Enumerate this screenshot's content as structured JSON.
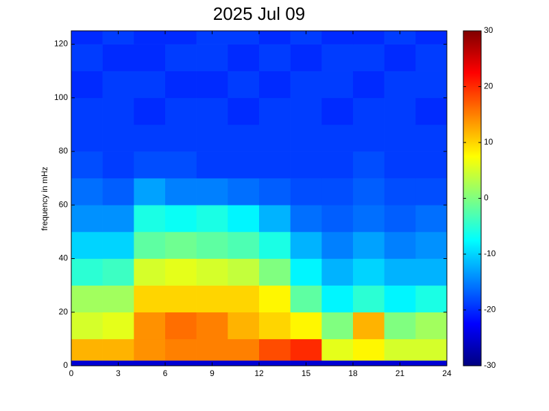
{
  "chart_data": {
    "type": "heatmap",
    "title": "2025 Jul 09",
    "y_label": "frequency in mHz",
    "colormap": "jet",
    "x_bins": [
      0,
      2,
      4,
      6,
      8,
      10,
      12,
      14,
      16,
      18,
      20,
      22,
      24
    ],
    "y_bins": [
      0,
      2,
      10,
      20,
      30,
      40,
      50,
      60,
      70,
      80,
      90,
      100,
      110,
      120,
      125
    ],
    "z": [
      [
        -25,
        -25,
        -25,
        -25,
        -25,
        -25,
        -25,
        -25,
        -25,
        -25,
        -25,
        -25
      ],
      [
        12,
        12,
        14,
        15,
        15,
        15,
        18,
        20,
        6,
        8,
        5,
        5
      ],
      [
        5,
        6,
        14,
        16,
        15,
        12,
        10,
        8,
        0,
        12,
        0,
        2
      ],
      [
        2,
        2,
        10,
        10,
        10,
        10,
        8,
        -2,
        -8,
        -5,
        -8,
        -6
      ],
      [
        -5,
        -4,
        5,
        6,
        5,
        4,
        0,
        -8,
        -12,
        -10,
        -12,
        -12
      ],
      [
        -10,
        -10,
        -2,
        -1,
        -2,
        -3,
        -6,
        -12,
        -15,
        -13,
        -15,
        -14
      ],
      [
        -14,
        -14,
        -6,
        -7,
        -6,
        -8,
        -12,
        -16,
        -17,
        -16,
        -17,
        -16
      ],
      [
        -16,
        -17,
        -13,
        -15,
        -15,
        -16,
        -17,
        -18,
        -18,
        -17,
        -18,
        -18
      ],
      [
        -18,
        -19,
        -18,
        -18,
        -19,
        -19,
        -19,
        -19,
        -19,
        -18,
        -19,
        -19
      ],
      [
        -19,
        -19,
        -19,
        -19,
        -19,
        -19,
        -19,
        -19,
        -19,
        -19,
        -19,
        -19
      ],
      [
        -19,
        -19,
        -20,
        -19,
        -19,
        -20,
        -19,
        -19,
        -20,
        -19,
        -19,
        -20
      ],
      [
        -20,
        -19,
        -19,
        -20,
        -20,
        -19,
        -20,
        -19,
        -19,
        -20,
        -19,
        -19
      ],
      [
        -19,
        -20,
        -20,
        -19,
        -19,
        -20,
        -19,
        -20,
        -19,
        -19,
        -20,
        -19
      ],
      [
        -20,
        -19,
        -20,
        -20,
        -19,
        -19,
        -20,
        -19,
        -20,
        -20,
        -19,
        -20
      ]
    ],
    "xlim": [
      0,
      24
    ],
    "xticks": [
      0,
      3,
      6,
      9,
      12,
      15,
      18,
      21,
      24
    ],
    "ylim": [
      0,
      125
    ],
    "yticks": [
      0,
      20,
      40,
      60,
      80,
      100,
      120
    ],
    "clim": [
      -30,
      30
    ],
    "cticks": [
      -30,
      -20,
      -10,
      0,
      10,
      20,
      30
    ]
  }
}
